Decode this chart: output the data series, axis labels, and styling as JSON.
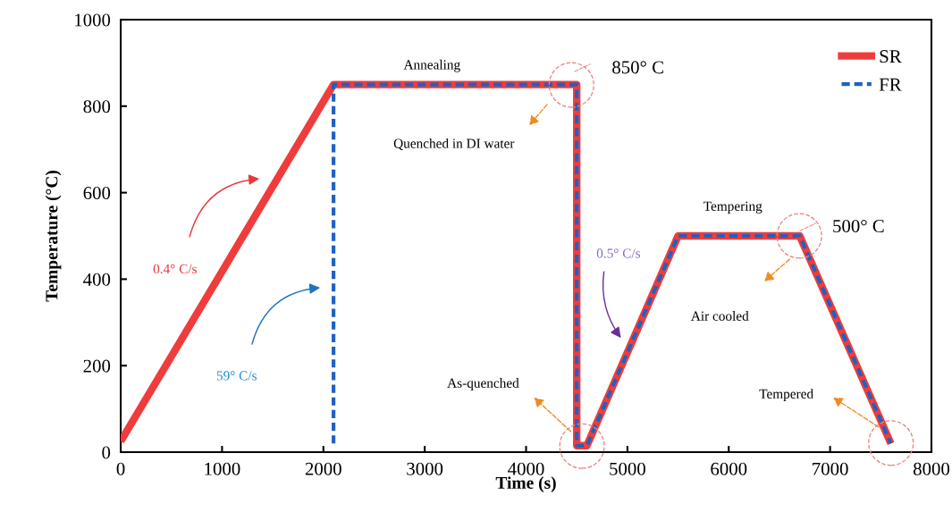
{
  "chart_data": {
    "type": "line",
    "xlabel": "Time (s)",
    "ylabel": "Temperature (°C)",
    "xlim": [
      0,
      8000
    ],
    "ylim": [
      0,
      1000
    ],
    "xticks": [
      0,
      1000,
      2000,
      3000,
      4000,
      5000,
      6000,
      7000,
      8000
    ],
    "yticks": [
      0,
      200,
      400,
      600,
      800,
      1000
    ],
    "grid": false,
    "legend": "top right",
    "marker": "none",
    "series": [
      {
        "name": "SR",
        "color": "#f03c3c",
        "line_style": "solid",
        "x": [
          0,
          2100,
          4500,
          4500,
          4600,
          5500,
          6700,
          7600
        ],
        "values": [
          25,
          850,
          850,
          15,
          15,
          500,
          500,
          20
        ]
      },
      {
        "name": "FR",
        "color": "#1f62c0",
        "line_style": "dashed",
        "x": [
          2100,
          2100,
          4500,
          4500,
          4600,
          5500,
          6700,
          7600
        ],
        "values": [
          20,
          850,
          850,
          15,
          15,
          500,
          500,
          20
        ]
      }
    ],
    "annotations": [
      "Annealing",
      "850° C",
      "Quenched in DI water",
      "Tempering",
      "500° C",
      "Air cooled",
      "As-quenched",
      "Tempered",
      "0.4° C/s",
      "59° C/s",
      "0.5° C/s"
    ]
  }
}
